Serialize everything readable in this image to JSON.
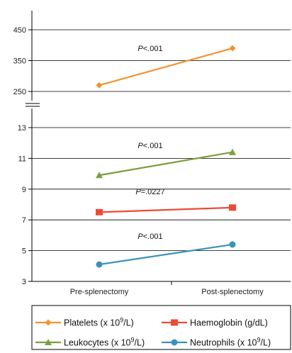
{
  "chart_data": {
    "type": "line",
    "categories": [
      "Pre-splenectomy",
      "Post-splenectomy"
    ],
    "upper_panel": {
      "ylim": [
        225,
        500
      ],
      "yticks": [
        "250",
        "350",
        "450"
      ],
      "series": [
        {
          "name": "Platelets",
          "unit": "x 10",
          "exp": "9",
          "unit_end": "/L",
          "color": "#f39230",
          "marker": "diamond",
          "values": [
            270,
            390
          ],
          "pvalue": "<.001"
        }
      ]
    },
    "lower_panel": {
      "ylim": [
        3,
        15
      ],
      "yticks": [
        "3",
        "5",
        "7",
        "9",
        "11",
        "13"
      ],
      "series": [
        {
          "name": "Leukocytes",
          "unit": "x 10",
          "exp": "9",
          "unit_end": "/L",
          "color": "#7aa03c",
          "marker": "triangle",
          "values": [
            9.9,
            11.4
          ],
          "pvalue": "<.001"
        },
        {
          "name": "Haemoglobin",
          "unit": "g/dL",
          "exp": "",
          "unit_end": "",
          "color": "#ee4a35",
          "marker": "square",
          "values": [
            7.5,
            7.8
          ],
          "pvalue": "=.0227"
        },
        {
          "name": "Neutrophils",
          "unit": "x 10",
          "exp": "9",
          "unit_end": "/L",
          "color": "#3a93bd",
          "marker": "circle",
          "values": [
            4.1,
            5.4
          ],
          "pvalue": "<.001"
        }
      ]
    },
    "pvalue_prefix": "P",
    "grid": true,
    "legend_position": "bottom"
  }
}
